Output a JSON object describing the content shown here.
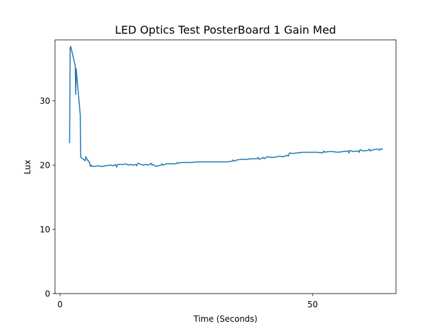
{
  "chart_data": {
    "type": "line",
    "title": "LED Optics Test PosterBoard 1 Gain Med",
    "xlabel": "Time (Seconds)",
    "ylabel": "Lux",
    "xlim": [
      -1,
      66.5
    ],
    "ylim": [
      0,
      39.5
    ],
    "xticks": [
      0,
      50
    ],
    "yticks": [
      0,
      10,
      20,
      30
    ],
    "grid": false,
    "line_color": "#1f77b4",
    "series": [
      {
        "x": [
          1.9,
          2.0,
          2.1,
          3.0,
          3.1,
          3.2,
          3.3,
          4.0,
          4.1,
          5.0,
          5.1,
          5.3,
          5.5,
          5.8,
          6.0,
          6.2,
          6.4,
          7.0,
          7.5,
          8.0,
          8.5,
          9.0,
          10.0,
          10.5,
          11.0,
          11.2,
          11.4,
          12.0,
          12.5,
          13.0,
          13.5,
          14.0,
          14.5,
          15.0,
          15.2,
          15.4,
          16.0,
          16.5,
          17.0,
          17.5,
          18.0,
          18.2,
          18.4,
          19.0,
          20.0,
          20.2,
          20.4,
          21.0,
          22.0,
          23.0,
          23.2,
          23.4,
          24.0,
          25.0,
          25.5,
          26.0,
          27.0,
          28.0,
          30.0,
          33.0,
          34.0,
          34.2,
          34.4,
          35.0,
          36.0,
          37.0,
          38.0,
          39.0,
          39.2,
          39.4,
          40.0,
          40.2,
          40.4,
          41.0,
          42.0,
          43.0,
          43.5,
          44.0,
          45.0,
          45.2,
          45.4,
          46.0,
          47.0,
          48.0,
          49.0,
          50.0,
          51.0,
          52.0,
          52.2,
          52.4,
          53.0,
          54.0,
          55.0,
          56.0,
          57.0,
          57.2,
          57.4,
          58.0,
          59.0,
          59.2,
          59.4,
          60.0,
          61.0,
          61.2,
          61.4,
          62.0,
          63.0,
          63.2,
          63.4,
          63.8
        ],
        "y": [
          23.5,
          38.2,
          38.5,
          35.5,
          31.0,
          35.0,
          34.0,
          27.8,
          21.2,
          20.7,
          21.3,
          21.0,
          20.7,
          20.5,
          19.8,
          20.0,
          19.8,
          19.8,
          19.9,
          19.8,
          19.8,
          19.9,
          20.0,
          19.9,
          20.1,
          19.7,
          20.1,
          20.1,
          20.1,
          20.2,
          20.0,
          20.1,
          20.0,
          20.1,
          19.9,
          20.3,
          20.1,
          20.0,
          20.1,
          20.0,
          20.3,
          20.0,
          20.1,
          19.8,
          20.0,
          20.2,
          20.0,
          20.2,
          20.2,
          20.2,
          20.4,
          20.3,
          20.4,
          20.4,
          20.4,
          20.4,
          20.5,
          20.5,
          20.5,
          20.5,
          20.6,
          20.8,
          20.6,
          20.8,
          20.9,
          20.9,
          21.0,
          21.0,
          21.2,
          20.9,
          21.1,
          21.2,
          21.0,
          21.3,
          21.2,
          21.3,
          21.4,
          21.3,
          21.5,
          21.4,
          21.9,
          21.8,
          21.9,
          22.0,
          22.0,
          22.0,
          22.0,
          21.9,
          22.2,
          22.0,
          22.1,
          22.1,
          22.0,
          22.1,
          22.2,
          21.9,
          22.3,
          22.1,
          22.2,
          22.0,
          22.4,
          22.2,
          22.3,
          22.5,
          22.2,
          22.4,
          22.5,
          22.3,
          22.5,
          22.5
        ]
      }
    ]
  }
}
